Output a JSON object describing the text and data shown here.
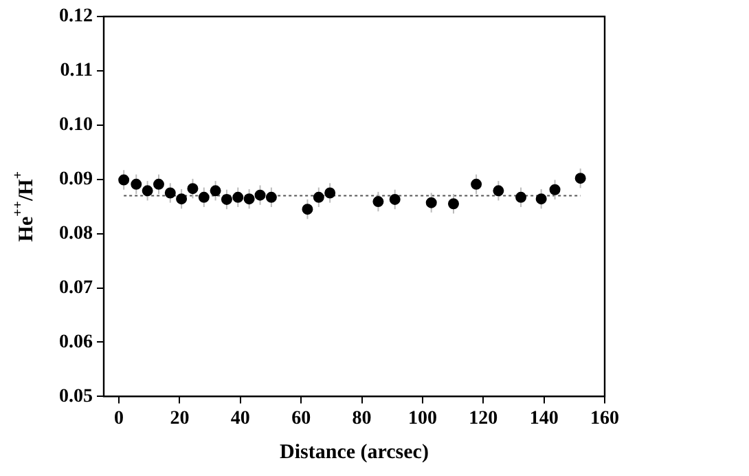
{
  "chart_data": {
    "type": "scatter",
    "xlabel": "Distance (arcsec)",
    "ylabel": "He$^{++}$/H$^{+}$",
    "xlim": [
      -5,
      160
    ],
    "xticks": [
      0,
      20,
      40,
      60,
      80,
      100,
      120,
      140,
      160
    ],
    "ylim": [
      0.05,
      0.12
    ],
    "yticks": [
      0.05,
      0.06,
      0.07,
      0.08,
      0.09,
      {
        "value": 0.1,
        "label": "0.10"
      },
      0.11,
      0.12
    ],
    "grid": false,
    "legend": false,
    "marker": "circle",
    "series": [
      {
        "color": "#000000",
        "x": [
          1.6,
          5.7,
          9.4,
          13.1,
          16.9,
          20.6,
          24.3,
          28.0,
          31.8,
          35.5,
          39.2,
          42.9,
          46.5,
          50.2,
          62.1,
          65.8,
          69.5,
          85.4,
          90.9,
          102.9,
          110.2,
          117.7,
          125.0,
          132.4,
          139.1,
          143.6,
          152.0
        ],
        "values": [
          0.0899,
          0.0891,
          0.0879,
          0.0891,
          0.0875,
          0.0864,
          0.0883,
          0.0867,
          0.0879,
          0.0863,
          0.0867,
          0.0864,
          0.0871,
          0.0867,
          0.0845,
          0.0867,
          0.0875,
          0.0859,
          0.0863,
          0.0857,
          0.0855,
          0.0891,
          0.0879,
          0.0867,
          0.0864,
          0.0881,
          0.0902
        ],
        "errors": [
          0.0018,
          0.0018,
          0.0018,
          0.0018,
          0.0018,
          0.0018,
          0.0018,
          0.0018,
          0.0018,
          0.0018,
          0.0018,
          0.0018,
          0.0018,
          0.0018,
          0.0018,
          0.0018,
          0.0018,
          0.0018,
          0.0018,
          0.0018,
          0.0018,
          0.0018,
          0.0018,
          0.0018,
          0.0018,
          0.0018,
          0.0018
        ]
      }
    ],
    "ref_lines": [
      {
        "axis": "y",
        "value": 0.087,
        "color": "#555555",
        "line_style": "dotted"
      }
    ]
  }
}
